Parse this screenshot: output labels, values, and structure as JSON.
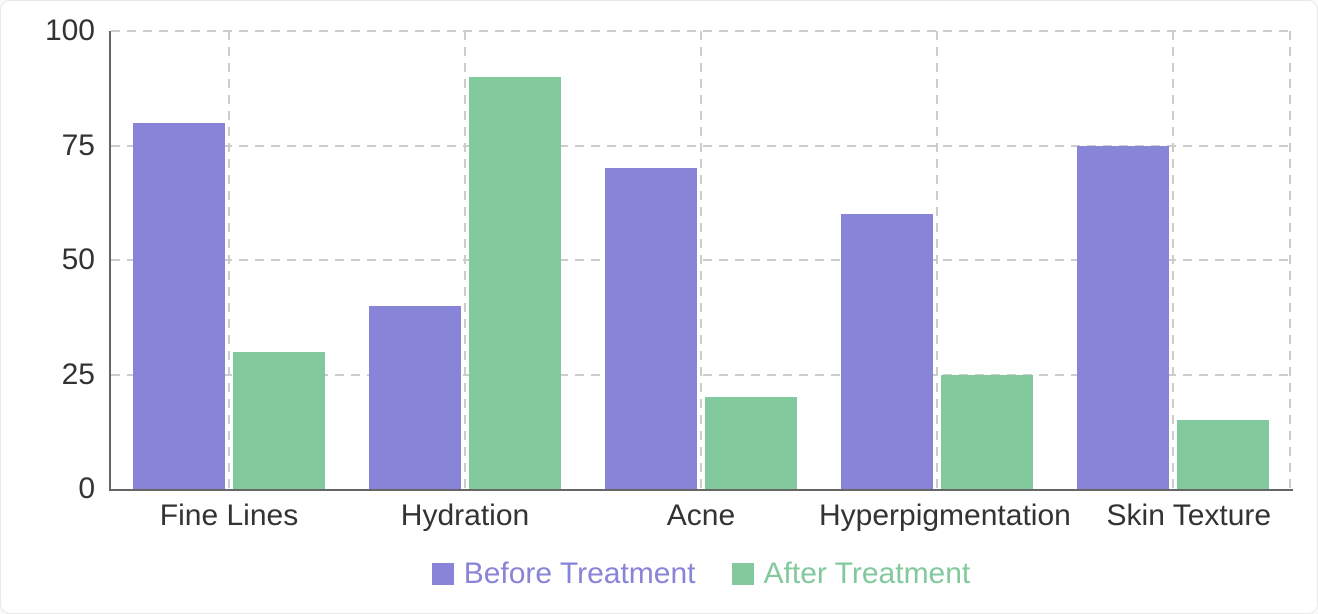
{
  "chart_data": {
    "type": "bar",
    "categories": [
      "Fine Lines",
      "Hydration",
      "Acne",
      "Hyperpigmentation",
      "Skin Texture"
    ],
    "series": [
      {
        "name": "Before Treatment",
        "color": "#8884d8",
        "values": [
          80,
          40,
          70,
          60,
          75
        ]
      },
      {
        "name": "After Treatment",
        "color": "#82ca9d",
        "values": [
          30,
          90,
          20,
          25,
          15
        ]
      }
    ],
    "title": "",
    "xlabel": "",
    "ylabel": "",
    "ylim": [
      0,
      100
    ],
    "yticks": [
      0,
      25,
      50,
      75,
      100
    ],
    "grid": "dashed",
    "legend_position": "bottom"
  },
  "colors": {
    "axis": "#666666",
    "grid": "#cccccc",
    "tick_text": "#333333",
    "background": "#ffffff",
    "card_border": "#e9e9e9"
  }
}
